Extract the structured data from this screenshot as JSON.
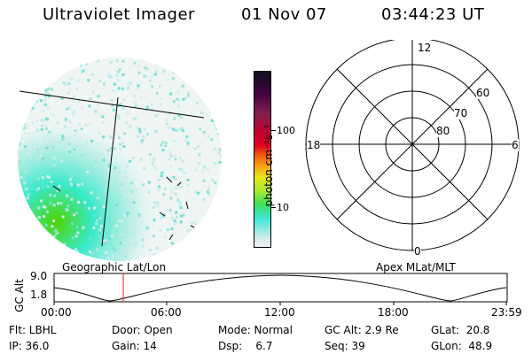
{
  "header": {
    "instrument": "Ultraviolet Imager",
    "date": "01 Nov 07",
    "time": "03:44:23 UT"
  },
  "colorbar": {
    "unit": "photon cm⁻²s⁻¹",
    "ticks": [
      "100",
      "10"
    ]
  },
  "polar_plot": {
    "mlt_labels": [
      "12",
      "18",
      "6",
      "0"
    ],
    "lat_labels": [
      "60",
      "70",
      "80"
    ]
  },
  "orbit_panel": {
    "left_label": "Geographic Lat/Lon",
    "right_label": "Apex MLat/MLT",
    "axis_label": "GC Alt",
    "y_ticks": [
      "9.0",
      "1.8"
    ],
    "time_ticks": [
      "00:00",
      "06:00",
      "12:00",
      "18:00",
      "23:59"
    ]
  },
  "status": {
    "row1": {
      "filter": "Flt: LBHL",
      "door": "Door: Open",
      "mode": "Mode: Normal",
      "gc_alt": "GC Alt: 2.9 Re",
      "glat": "GLat:  20.8"
    },
    "row2": {
      "ip": "IP: 36.0",
      "gain": "Gain: 14",
      "dsp": "Dsp:    6.7",
      "seq": "Seq: 39",
      "glon": "GLon:  48.9"
    }
  }
}
